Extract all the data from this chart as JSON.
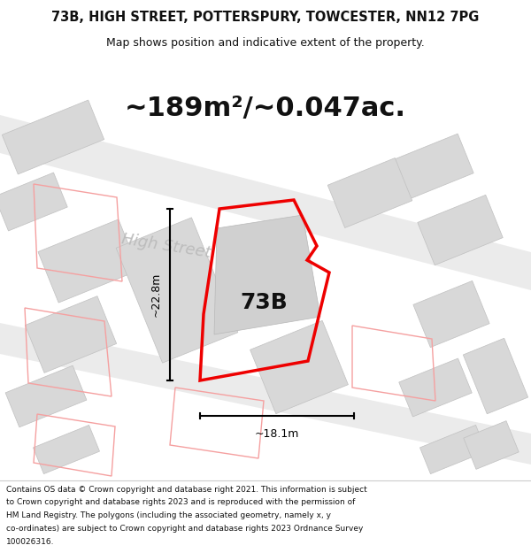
{
  "title_line1": "73B, HIGH STREET, POTTERSPURY, TOWCESTER, NN12 7PG",
  "title_line2": "Map shows position and indicative extent of the property.",
  "area_text": "~189m²/~0.047ac.",
  "label_73b": "73B",
  "dim_vertical": "~22.8m",
  "dim_horizontal": "~18.1m",
  "street_label": "High Street",
  "copyright_lines": [
    "Contains OS data © Crown copyright and database right 2021. This information is subject",
    "to Crown copyright and database rights 2023 and is reproduced with the permission of",
    "HM Land Registry. The polygons (including the associated geometry, namely x, y",
    "co-ordinates) are subject to Crown copyright and database rights 2023 Ordnance Survey",
    "100026316."
  ],
  "bg_color": "#ffffff",
  "building_fill": "#d8d8d8",
  "building_edge": "#c0c0c0",
  "road_fill": "#ebebeb",
  "red_poly_color": "#ee0000",
  "red_other_color": "#f5a0a0",
  "street_label_color": "#bbbbbb",
  "dim_color": "#000000",
  "area_color": "#111111",
  "title_color": "#111111",
  "label_color": "#111111",
  "copy_color": "#111111"
}
